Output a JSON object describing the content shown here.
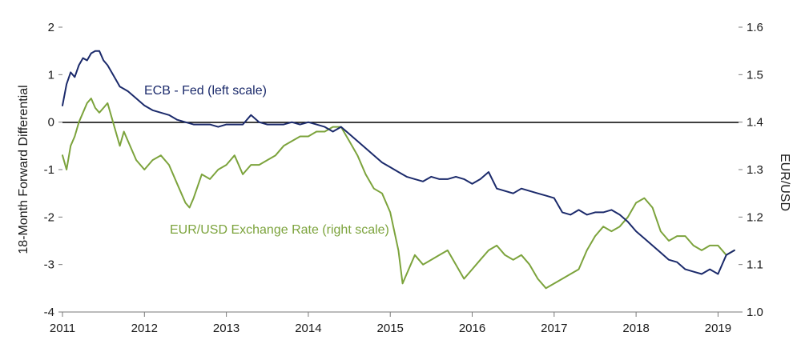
{
  "chart_data": {
    "type": "line",
    "title": "",
    "xlabel": "",
    "ylabel_left": "18-Month Forward Differential",
    "ylabel_right": "EUR/USD",
    "x_ticks": [
      "2011",
      "2012",
      "2013",
      "2014",
      "2015",
      "2016",
      "2017",
      "2018",
      "2019"
    ],
    "y_left_ticks": [
      "2",
      "1",
      "0",
      "-1",
      "-2",
      "-3",
      "-4"
    ],
    "y_right_ticks": [
      "1.6",
      "1.5",
      "1.4",
      "1.3",
      "1.2",
      "1.1",
      "1.0"
    ],
    "ylim_left": [
      -4,
      2
    ],
    "ylim_right": [
      1.0,
      1.6
    ],
    "xlim": [
      2011.0,
      2019.25
    ],
    "zero_line": 0,
    "grid": false,
    "colors": {
      "ecb_fed": "#1b2a6b",
      "eurusd": "#7ca33c"
    },
    "series": [
      {
        "name": "ECB - Fed (left scale)",
        "label": "ECB - Fed (left scale)",
        "axis": "left",
        "x": [
          2011.0,
          2011.05,
          2011.1,
          2011.15,
          2011.2,
          2011.25,
          2011.3,
          2011.35,
          2011.4,
          2011.45,
          2011.5,
          2011.55,
          2011.6,
          2011.65,
          2011.7,
          2011.75,
          2011.8,
          2011.9,
          2012.0,
          2012.1,
          2012.2,
          2012.3,
          2012.4,
          2012.5,
          2012.6,
          2012.7,
          2012.8,
          2012.9,
          2013.0,
          2013.1,
          2013.2,
          2013.3,
          2013.4,
          2013.5,
          2013.6,
          2013.7,
          2013.8,
          2013.9,
          2014.0,
          2014.1,
          2014.2,
          2014.3,
          2014.4,
          2014.5,
          2014.6,
          2014.7,
          2014.8,
          2014.9,
          2015.0,
          2015.1,
          2015.2,
          2015.3,
          2015.4,
          2015.5,
          2015.6,
          2015.7,
          2015.8,
          2015.9,
          2016.0,
          2016.1,
          2016.2,
          2016.3,
          2016.4,
          2016.5,
          2016.6,
          2016.7,
          2016.8,
          2016.9,
          2017.0,
          2017.1,
          2017.2,
          2017.3,
          2017.4,
          2017.5,
          2017.6,
          2017.7,
          2017.8,
          2017.9,
          2018.0,
          2018.1,
          2018.2,
          2018.3,
          2018.4,
          2018.5,
          2018.6,
          2018.7,
          2018.8,
          2018.9,
          2019.0,
          2019.1,
          2019.2
        ],
        "values": [
          0.35,
          0.8,
          1.05,
          0.95,
          1.2,
          1.35,
          1.3,
          1.45,
          1.5,
          1.5,
          1.3,
          1.2,
          1.05,
          0.9,
          0.75,
          0.7,
          0.65,
          0.5,
          0.35,
          0.25,
          0.2,
          0.15,
          0.05,
          0.0,
          -0.05,
          -0.05,
          -0.05,
          -0.1,
          -0.05,
          -0.05,
          -0.05,
          0.15,
          0.0,
          -0.05,
          -0.05,
          -0.05,
          0.0,
          -0.05,
          0.0,
          -0.05,
          -0.1,
          -0.2,
          -0.1,
          -0.25,
          -0.4,
          -0.55,
          -0.7,
          -0.85,
          -0.95,
          -1.05,
          -1.15,
          -1.2,
          -1.25,
          -1.15,
          -1.2,
          -1.2,
          -1.15,
          -1.2,
          -1.3,
          -1.2,
          -1.05,
          -1.4,
          -1.45,
          -1.5,
          -1.4,
          -1.45,
          -1.5,
          -1.55,
          -1.6,
          -1.9,
          -1.95,
          -1.85,
          -1.95,
          -1.9,
          -1.9,
          -1.85,
          -1.95,
          -2.1,
          -2.3,
          -2.45,
          -2.6,
          -2.75,
          -2.9,
          -2.95,
          -3.1,
          -3.15,
          -3.2,
          -3.1,
          -3.2,
          -2.8,
          -2.7
        ]
      },
      {
        "name": "EUR/USD Exchange Rate (right scale)",
        "label": "EUR/USD Exchange Rate (right scale)",
        "axis": "right",
        "x": [
          2011.0,
          2011.05,
          2011.1,
          2011.15,
          2011.2,
          2011.25,
          2011.3,
          2011.35,
          2011.4,
          2011.45,
          2011.5,
          2011.55,
          2011.6,
          2011.65,
          2011.7,
          2011.75,
          2011.8,
          2011.9,
          2012.0,
          2012.1,
          2012.2,
          2012.3,
          2012.4,
          2012.5,
          2012.55,
          2012.6,
          2012.7,
          2012.8,
          2012.9,
          2013.0,
          2013.1,
          2013.2,
          2013.3,
          2013.4,
          2013.5,
          2013.6,
          2013.7,
          2013.8,
          2013.9,
          2014.0,
          2014.1,
          2014.2,
          2014.3,
          2014.4,
          2014.5,
          2014.6,
          2014.7,
          2014.8,
          2014.9,
          2015.0,
          2015.1,
          2015.15,
          2015.2,
          2015.3,
          2015.4,
          2015.5,
          2015.6,
          2015.7,
          2015.8,
          2015.9,
          2016.0,
          2016.1,
          2016.2,
          2016.3,
          2016.4,
          2016.5,
          2016.6,
          2016.7,
          2016.8,
          2016.9,
          2017.0,
          2017.1,
          2017.2,
          2017.3,
          2017.4,
          2017.5,
          2017.6,
          2017.7,
          2017.8,
          2017.9,
          2018.0,
          2018.1,
          2018.2,
          2018.3,
          2018.4,
          2018.5,
          2018.6,
          2018.7,
          2018.8,
          2018.9,
          2019.0,
          2019.1,
          2019.2
        ],
        "values": [
          1.33,
          1.3,
          1.35,
          1.37,
          1.4,
          1.42,
          1.44,
          1.45,
          1.43,
          1.42,
          1.43,
          1.44,
          1.41,
          1.38,
          1.35,
          1.38,
          1.36,
          1.32,
          1.3,
          1.32,
          1.33,
          1.31,
          1.27,
          1.23,
          1.22,
          1.24,
          1.29,
          1.28,
          1.3,
          1.31,
          1.33,
          1.29,
          1.31,
          1.31,
          1.32,
          1.33,
          1.35,
          1.36,
          1.37,
          1.37,
          1.38,
          1.38,
          1.39,
          1.39,
          1.36,
          1.33,
          1.29,
          1.26,
          1.25,
          1.21,
          1.13,
          1.06,
          1.08,
          1.12,
          1.1,
          1.11,
          1.12,
          1.13,
          1.1,
          1.07,
          1.09,
          1.11,
          1.13,
          1.14,
          1.12,
          1.11,
          1.12,
          1.1,
          1.07,
          1.05,
          1.06,
          1.07,
          1.08,
          1.09,
          1.13,
          1.16,
          1.18,
          1.17,
          1.18,
          1.2,
          1.23,
          1.24,
          1.22,
          1.17,
          1.15,
          1.16,
          1.16,
          1.14,
          1.13,
          1.14,
          1.14,
          1.12,
          1.13
        ]
      }
    ]
  }
}
